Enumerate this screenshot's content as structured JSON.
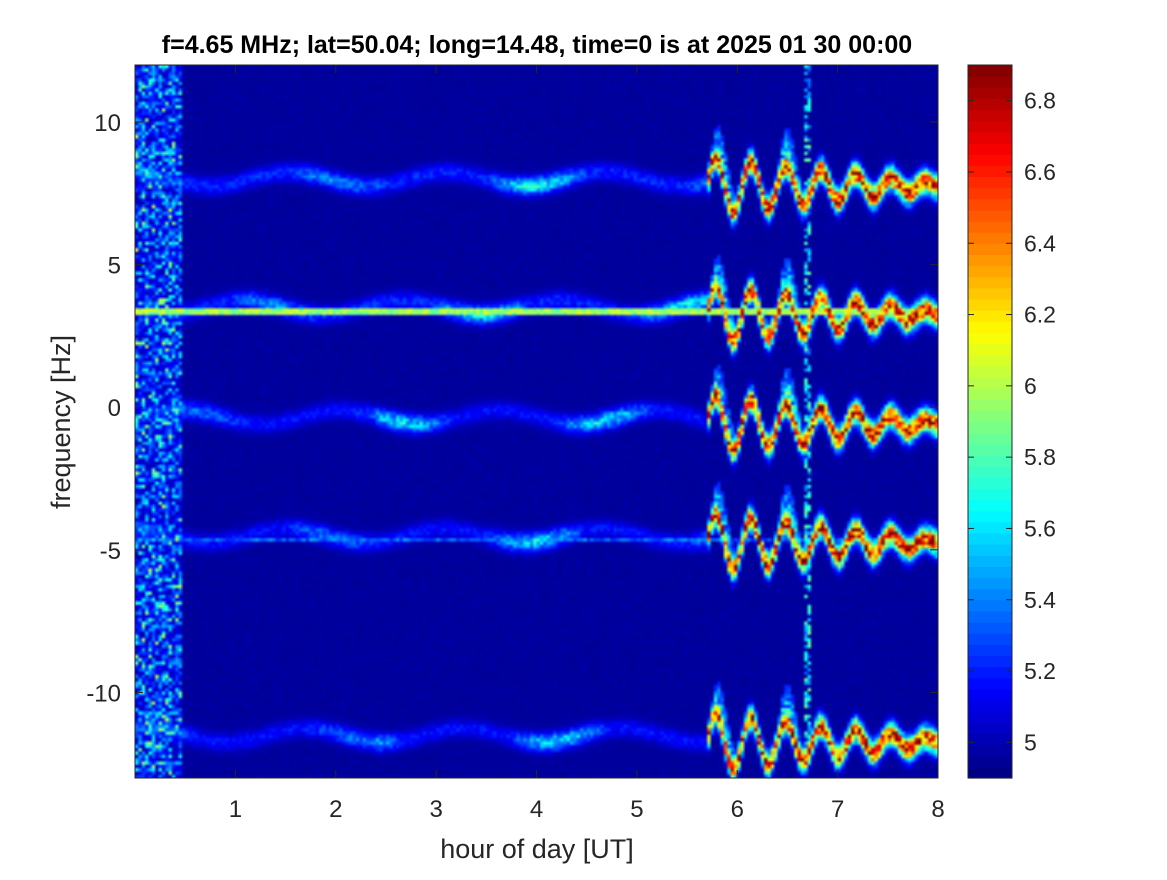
{
  "chart_data": {
    "type": "heatmap",
    "title": "f=4.65 MHz;  lat=50.04; long=14.48, time=0 is at 2025 01 30 00:00",
    "xlabel": "hour of day [UT]",
    "ylabel": "frequency [Hz]",
    "xlim": [
      0,
      8
    ],
    "ylim": [
      -13,
      12
    ],
    "x_ticks": [
      1,
      2,
      3,
      4,
      5,
      6,
      7,
      8
    ],
    "x_tick_labels": [
      "1",
      "2",
      "3",
      "4",
      "5",
      "6",
      "7",
      "8"
    ],
    "y_ticks": [
      -10,
      -5,
      0,
      5,
      10
    ],
    "y_tick_labels": [
      "-10",
      "-5",
      "0",
      "5",
      "10"
    ],
    "colorbar": {
      "colormap": "jet",
      "range": [
        4.9,
        6.9
      ],
      "ticks": [
        5,
        5.2,
        5.4,
        5.6,
        5.8,
        6,
        6.2,
        6.4,
        6.6,
        6.8
      ],
      "tick_labels": [
        "5",
        "5.2",
        "5.4",
        "5.6",
        "5.8",
        "6",
        "6.2",
        "6.4",
        "6.6",
        "6.8"
      ]
    },
    "background_value": 4.95,
    "traces": [
      {
        "base_frequency": 8.0,
        "quiet_level": 5.25,
        "active_level": 6.8
      },
      {
        "base_frequency": 3.5,
        "quiet_level": 5.25,
        "active_level": 6.8
      },
      {
        "base_frequency": -0.35,
        "quiet_level": 5.2,
        "active_level": 6.85
      },
      {
        "base_frequency": -4.5,
        "quiet_level": 5.2,
        "active_level": 6.85
      },
      {
        "base_frequency": -11.5,
        "quiet_level": 5.2,
        "active_level": 6.8
      }
    ],
    "horizontal_lines": [
      {
        "frequency": 3.35,
        "value": 6.1
      },
      {
        "frequency": -4.65,
        "value": 5.5
      }
    ],
    "vertical_lines": [
      {
        "hour": 6.7,
        "value": 5.9
      }
    ],
    "noise_band_hours": [
      0.0,
      0.45
    ],
    "activity_onset_hour": 5.7,
    "grid": false,
    "legend": "none"
  }
}
